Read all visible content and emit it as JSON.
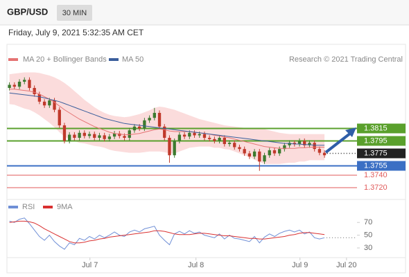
{
  "header": {
    "symbol": "GBP/USD",
    "interval": "30 MIN",
    "timestamp": "Friday, July 9, 2021 5:32:35 AM CET"
  },
  "chart_data": [
    {
      "type": "candlestick",
      "credit": "Research © 2021 Trading Central",
      "xlim": [
        0,
        70
      ],
      "ylim": [
        1.371,
        1.391
      ],
      "up_color": "#3c7a2e",
      "down_color": "#c0392b",
      "open": [
        1.388,
        1.3885,
        1.3882,
        1.389,
        1.3893,
        1.388,
        1.387,
        1.3858,
        1.3852,
        1.386,
        1.3845,
        1.382,
        1.3795,
        1.3805,
        1.38,
        1.3808,
        1.3803,
        1.3806,
        1.38,
        1.3804,
        1.3798,
        1.3802,
        1.3807,
        1.3803,
        1.38,
        1.3812,
        1.3818,
        1.3815,
        1.3828,
        1.3832,
        1.384,
        1.3818,
        1.38,
        1.3772,
        1.3795,
        1.3805,
        1.3802,
        1.3808,
        1.3804,
        1.3806,
        1.38,
        1.3798,
        1.3795,
        1.38,
        1.379,
        1.3792,
        1.3785,
        1.3782,
        1.3775,
        1.377,
        1.3778,
        1.3762,
        1.3772,
        1.378,
        1.3775,
        1.3782,
        1.3788,
        1.3792,
        1.379,
        1.3795,
        1.3788,
        1.3792,
        1.3782,
        1.3776
      ],
      "high": [
        1.3889,
        1.3889,
        1.3894,
        1.3897,
        1.3897,
        1.3884,
        1.3874,
        1.3862,
        1.3864,
        1.3864,
        1.3849,
        1.3824,
        1.3809,
        1.3809,
        1.3812,
        1.3812,
        1.381,
        1.381,
        1.3808,
        1.3808,
        1.3806,
        1.3811,
        1.3811,
        1.3807,
        1.3816,
        1.3822,
        1.3822,
        1.3832,
        1.3836,
        1.3848,
        1.3844,
        1.3822,
        1.3804,
        1.3799,
        1.3809,
        1.3809,
        1.3812,
        1.3812,
        1.381,
        1.381,
        1.3804,
        1.3802,
        1.3804,
        1.3804,
        1.3796,
        1.3796,
        1.3789,
        1.3786,
        1.3779,
        1.3782,
        1.3782,
        1.3776,
        1.3784,
        1.3784,
        1.3786,
        1.3792,
        1.3796,
        1.3796,
        1.3799,
        1.3799,
        1.3796,
        1.3796,
        1.3786,
        1.378
      ],
      "low": [
        1.3876,
        1.3878,
        1.3878,
        1.3886,
        1.3876,
        1.3866,
        1.3854,
        1.3848,
        1.3848,
        1.3841,
        1.3816,
        1.3791,
        1.3791,
        1.3796,
        1.3796,
        1.3799,
        1.3799,
        1.3796,
        1.3796,
        1.3794,
        1.3794,
        1.3798,
        1.3799,
        1.3796,
        1.3796,
        1.3808,
        1.3811,
        1.3811,
        1.3824,
        1.3828,
        1.3814,
        1.3796,
        1.376,
        1.3768,
        1.3791,
        1.3798,
        1.3798,
        1.38,
        1.38,
        1.3796,
        1.3794,
        1.3791,
        1.3791,
        1.3786,
        1.3786,
        1.3781,
        1.3778,
        1.3771,
        1.3766,
        1.3766,
        1.3747,
        1.3758,
        1.3768,
        1.3771,
        1.3771,
        1.3778,
        1.3784,
        1.3786,
        1.3786,
        1.3784,
        1.3784,
        1.3778,
        1.3772,
        1.3768
      ],
      "close": [
        1.3885,
        1.3882,
        1.389,
        1.3893,
        1.388,
        1.387,
        1.3858,
        1.3852,
        1.386,
        1.3845,
        1.382,
        1.3795,
        1.3805,
        1.38,
        1.3808,
        1.3803,
        1.3806,
        1.38,
        1.3804,
        1.3798,
        1.3802,
        1.3807,
        1.3803,
        1.38,
        1.3812,
        1.3818,
        1.3815,
        1.3828,
        1.3832,
        1.384,
        1.3818,
        1.38,
        1.3772,
        1.3795,
        1.3805,
        1.3802,
        1.3808,
        1.3804,
        1.3806,
        1.38,
        1.3798,
        1.3795,
        1.38,
        1.379,
        1.3792,
        1.3785,
        1.3782,
        1.3775,
        1.377,
        1.3778,
        1.3762,
        1.3772,
        1.378,
        1.3775,
        1.3782,
        1.3788,
        1.3792,
        1.379,
        1.3795,
        1.3788,
        1.3792,
        1.3782,
        1.3776,
        1.3772
      ],
      "series": [
        {
          "name": "MA 20 + Bollinger Bands",
          "color": "#e57373",
          "band_color": "#fbdcdc",
          "values": [
            1.3878,
            1.3878,
            1.3877,
            1.3876,
            1.3875,
            1.3873,
            1.387,
            1.3866,
            1.3862,
            1.3857,
            1.3851,
            1.3845,
            1.384,
            1.3835,
            1.383,
            1.3826,
            1.3822,
            1.3818,
            1.3815,
            1.3812,
            1.3809,
            1.3807,
            1.3806,
            1.3805,
            1.3805,
            1.3806,
            1.3807,
            1.3809,
            1.3811,
            1.3813,
            1.3814,
            1.3813,
            1.3811,
            1.381,
            1.381,
            1.381,
            1.381,
            1.3809,
            1.3808,
            1.3807,
            1.3806,
            1.3804,
            1.3803,
            1.3801,
            1.38,
            1.3798,
            1.3796,
            1.3794,
            1.3792,
            1.379,
            1.3788,
            1.3786,
            1.3785,
            1.3784,
            1.3783,
            1.3783,
            1.3783,
            1.3783,
            1.3784,
            1.3784,
            1.3785,
            1.3785,
            1.3785,
            1.3785
          ],
          "band_upper": [
            1.3902,
            1.3903,
            1.3904,
            1.3905,
            1.3905,
            1.3905,
            1.3904,
            1.3902,
            1.39,
            1.3897,
            1.3893,
            1.3888,
            1.3882,
            1.3875,
            1.3868,
            1.3861,
            1.3855,
            1.3849,
            1.3844,
            1.384,
            1.3837,
            1.3835,
            1.3834,
            1.3833,
            1.3834,
            1.3836,
            1.3838,
            1.3841,
            1.3844,
            1.3848,
            1.385,
            1.3849,
            1.3847,
            1.3845,
            1.3842,
            1.3839,
            1.3836,
            1.3833,
            1.383,
            1.3828,
            1.3826,
            1.3824,
            1.3822,
            1.382,
            1.3819,
            1.3818,
            1.3817,
            1.3816,
            1.3815,
            1.3815,
            1.3815,
            1.3814,
            1.3812,
            1.381,
            1.3808,
            1.3807,
            1.3806,
            1.3806,
            1.3806,
            1.3806,
            1.3806,
            1.3806,
            1.3806,
            1.3806
          ],
          "band_lower": [
            1.3854,
            1.3853,
            1.385,
            1.3847,
            1.3845,
            1.3841,
            1.3836,
            1.383,
            1.3824,
            1.3817,
            1.3809,
            1.3802,
            1.3798,
            1.3795,
            1.3792,
            1.3791,
            1.3789,
            1.3787,
            1.3786,
            1.3784,
            1.3781,
            1.3779,
            1.3778,
            1.3777,
            1.3776,
            1.3776,
            1.3776,
            1.3777,
            1.3778,
            1.3778,
            1.3778,
            1.3777,
            1.3775,
            1.3775,
            1.3778,
            1.3781,
            1.3784,
            1.3785,
            1.3786,
            1.3786,
            1.3786,
            1.3784,
            1.3784,
            1.3782,
            1.3781,
            1.3778,
            1.3775,
            1.3772,
            1.3769,
            1.3765,
            1.3761,
            1.3758,
            1.3758,
            1.3758,
            1.3758,
            1.3759,
            1.376,
            1.376,
            1.3762,
            1.3762,
            1.3764,
            1.3764,
            1.3764,
            1.3764
          ]
        },
        {
          "name": "MA 50",
          "color": "#3a5e9c",
          "values": [
            1.3872,
            1.3871,
            1.387,
            1.3869,
            1.3868,
            1.3867,
            1.3866,
            1.3864,
            1.3862,
            1.386,
            1.3858,
            1.3855,
            1.3852,
            1.3849,
            1.3846,
            1.3843,
            1.384,
            1.3837,
            1.3834,
            1.3831,
            1.3829,
            1.3827,
            1.3825,
            1.3823,
            1.3822,
            1.3821,
            1.382,
            1.3819,
            1.3818,
            1.3817,
            1.3816,
            1.3815,
            1.3814,
            1.3813,
            1.3812,
            1.3811,
            1.381,
            1.3809,
            1.3808,
            1.3807,
            1.3806,
            1.3805,
            1.3804,
            1.3803,
            1.3802,
            1.3801,
            1.38,
            1.3799,
            1.3798,
            1.3797,
            1.3796,
            1.3795,
            1.3794,
            1.3793,
            1.3792,
            1.3791,
            1.3791,
            1.379,
            1.379,
            1.3789,
            1.3789,
            1.3788,
            1.3788,
            1.3788
          ]
        }
      ],
      "levels": [
        {
          "value": 1.3815,
          "color": "#5aa02c",
          "boxed": true
        },
        {
          "value": 1.3795,
          "color": "#5aa02c",
          "boxed": true
        },
        {
          "value": 1.3775,
          "color": "#222222",
          "boxed": true,
          "style": "dotted"
        },
        {
          "value": 1.3755,
          "color": "#3b6fc4",
          "boxed": true
        },
        {
          "value": 1.374,
          "label": "1.3740",
          "color": "#e05a5a",
          "boxed": false
        },
        {
          "value": 1.372,
          "label": "1.3720",
          "color": "#e05a5a",
          "boxed": false
        }
      ]
    },
    {
      "type": "line",
      "xlim": [
        0,
        70
      ],
      "ylim": [
        17,
        80
      ],
      "yticks": [
        70,
        50,
        30
      ],
      "xticks": [
        {
          "value": 16.6,
          "label": "Jul 7"
        },
        {
          "value": 37.8,
          "label": "Jul 8"
        },
        {
          "value": 58.6,
          "label": "Jul 9"
        },
        {
          "value": 67.9,
          "label": "Jul 20"
        }
      ],
      "series": [
        {
          "name": "RSI",
          "color": "#6f8fd6",
          "values": [
            72,
            70,
            75,
            77,
            68,
            58,
            48,
            42,
            50,
            40,
            33,
            28,
            38,
            35,
            45,
            42,
            48,
            44,
            50,
            46,
            50,
            55,
            50,
            48,
            55,
            58,
            55,
            60,
            62,
            64,
            50,
            42,
            35,
            52,
            56,
            52,
            57,
            53,
            55,
            50,
            48,
            46,
            52,
            44,
            50,
            45,
            44,
            42,
            40,
            48,
            38,
            47,
            52,
            48,
            53,
            56,
            58,
            55,
            58,
            52,
            55,
            46,
            44,
            46
          ]
        },
        {
          "name": "9MA",
          "color": "#d93030",
          "values": [
            70,
            71,
            72,
            72,
            71,
            69,
            65,
            60,
            56,
            52,
            48,
            44,
            40,
            38,
            38,
            39,
            41,
            42,
            44,
            45,
            47,
            48,
            49,
            50,
            51,
            52,
            53,
            54,
            55,
            57,
            57,
            56,
            54,
            52,
            51,
            51,
            51,
            52,
            53,
            53,
            52,
            51,
            50,
            49,
            49,
            48,
            47,
            46,
            45,
            45,
            44,
            44,
            45,
            46,
            47,
            48,
            50,
            51,
            53,
            54,
            54,
            53,
            52,
            51
          ]
        }
      ]
    }
  ]
}
